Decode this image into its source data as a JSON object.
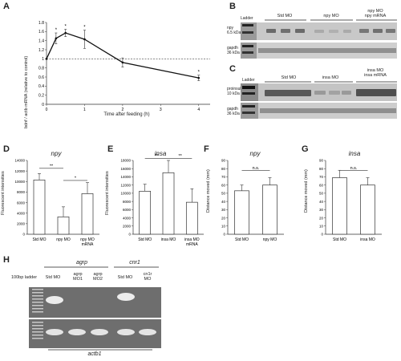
{
  "panels": {
    "A": {
      "letter": "A",
      "ylabel": "bdnf / actb mRNA (relative to control)",
      "xlabel": "Time after feeding (h)",
      "yticks": [
        "0",
        "0.2",
        "0.4",
        "0.6",
        "0.8",
        "1",
        "1.2",
        "1.4",
        "1.6",
        "1.8"
      ],
      "xticks": [
        "0",
        "1",
        "2",
        "3",
        "4"
      ],
      "stars": [
        "*",
        "*",
        "*",
        "*",
        "*"
      ]
    },
    "B": {
      "letter": "B",
      "ladder": "Ladder",
      "lanes": [
        "Std MO",
        "npy MO",
        "npy MO\nnpy mRNA"
      ],
      "row1": "npy\n6.5 kDa",
      "row2": "gapdh\n36 kDa"
    },
    "C": {
      "letter": "C",
      "ladder": "Ladder",
      "lanes": [
        "Std MO",
        "insa MO",
        "insa MO\ninsa mRNA"
      ],
      "row1": "proinsulin a\n10 kDa",
      "row2": "gapdh\n36 kDa"
    },
    "D": {
      "letter": "D",
      "title": "npy",
      "ylabel": "Fluorescent intensities",
      "yticks": [
        "0",
        "2000",
        "4000",
        "6000",
        "8000",
        "10000",
        "12000",
        "14000"
      ],
      "categories": [
        "Std MO",
        "npy MO",
        "npy MO\nmRNA"
      ],
      "sig": [
        "**",
        "*"
      ]
    },
    "E": {
      "letter": "E",
      "title": "insa",
      "ylabel": "Fluorescent intensities",
      "yticks": [
        "0",
        "2000",
        "4000",
        "6000",
        "8000",
        "10000",
        "12000",
        "14000",
        "16000",
        "18000"
      ],
      "categories": [
        "Std MO",
        "insa MO",
        "insa MO\nmRNA"
      ],
      "sig": [
        "**",
        "**"
      ]
    },
    "F": {
      "letter": "F",
      "title": "npy",
      "ylabel": "Distance moved (mm)",
      "yticks": [
        "0",
        "10",
        "20",
        "30",
        "40",
        "50",
        "60",
        "70",
        "80",
        "90"
      ],
      "categories": [
        "Std MO",
        "npy MO"
      ],
      "sig": [
        "n.s."
      ]
    },
    "G": {
      "letter": "G",
      "title": "insa",
      "ylabel": "Distance moved (mm)",
      "yticks": [
        "0",
        "10",
        "20",
        "30",
        "40",
        "50",
        "60",
        "70",
        "80",
        "90"
      ],
      "categories": [
        "Std MO",
        "insa MO"
      ],
      "sig": [
        "n.s."
      ]
    },
    "H": {
      "letter": "H",
      "ladder": "100bp ladder",
      "group1": "agrp",
      "group2": "cnr1",
      "lanes": [
        "Std MO",
        "agrp\nMO1",
        "agrp\nMO2",
        "Std MO",
        "cn1r\nMO"
      ],
      "bottom": "actb1"
    }
  },
  "chart_data": [
    {
      "panel": "A",
      "type": "line",
      "x": [
        0,
        0.25,
        0.5,
        1,
        2,
        4
      ],
      "y": [
        1.0,
        1.45,
        1.57,
        1.43,
        0.92,
        0.58
      ],
      "err": [
        0,
        0.12,
        0.08,
        0.2,
        0.1,
        0.06
      ],
      "xlabel": "Time after feeding (h)",
      "ylabel": "bdnf / actb mRNA (relative to control)",
      "xlim": [
        0,
        4.3
      ],
      "ylim": [
        0,
        1.8
      ],
      "reference_line": 1.0
    },
    {
      "panel": "D",
      "type": "bar",
      "title": "npy",
      "categories": [
        "Std MO",
        "npy MO",
        "npy MO mRNA"
      ],
      "values": [
        10300,
        3300,
        7700
      ],
      "err": [
        1200,
        1900,
        2100
      ],
      "ylim": [
        0,
        14000
      ]
    },
    {
      "panel": "E",
      "type": "bar",
      "title": "insa",
      "categories": [
        "Std MO",
        "insa MO",
        "insa MO mRNA"
      ],
      "values": [
        10500,
        15000,
        7800
      ],
      "err": [
        1700,
        3000,
        3300
      ],
      "ylim": [
        0,
        18000
      ]
    },
    {
      "panel": "F",
      "type": "bar",
      "title": "npy",
      "categories": [
        "Std MO",
        "npy MO"
      ],
      "values": [
        53,
        60
      ],
      "err": [
        7,
        9
      ],
      "ylim": [
        0,
        90
      ]
    },
    {
      "panel": "G",
      "type": "bar",
      "title": "insa",
      "categories": [
        "Std MO",
        "insa MO"
      ],
      "values": [
        69,
        60
      ],
      "err": [
        9,
        9
      ],
      "ylim": [
        0,
        90
      ]
    }
  ]
}
